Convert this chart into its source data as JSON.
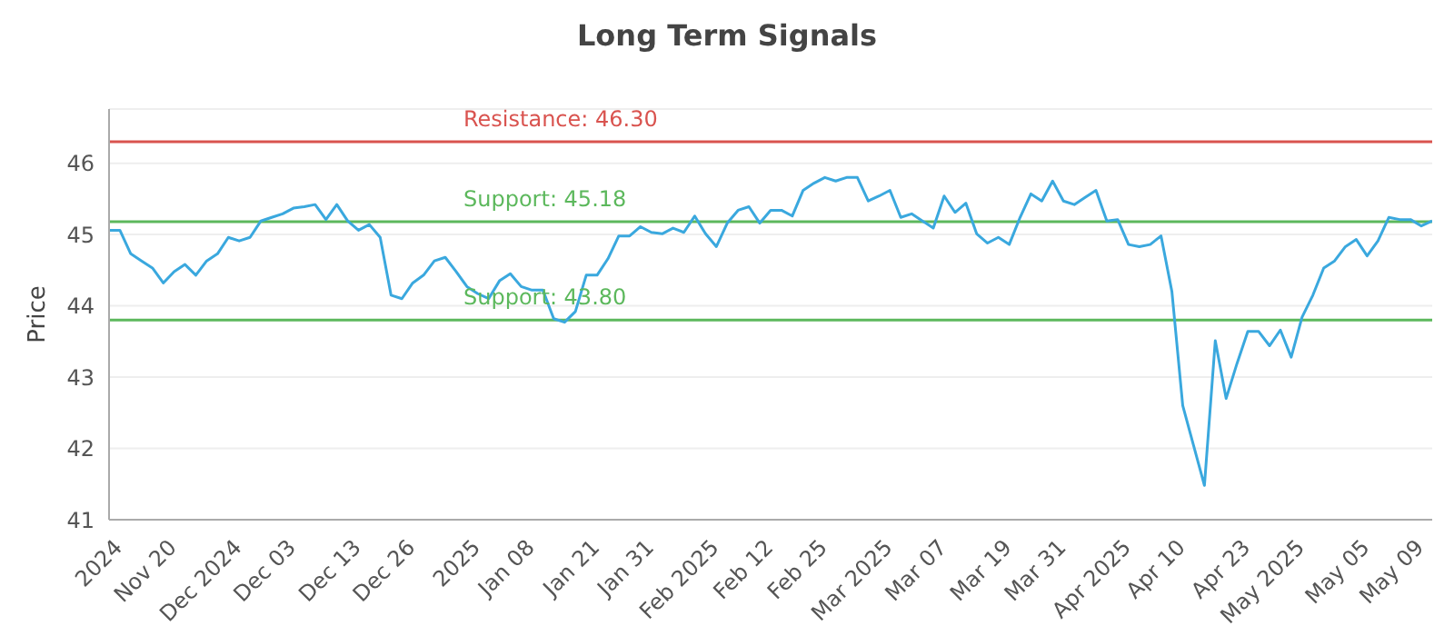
{
  "chart_data": {
    "type": "line",
    "title": "Long Term Signals",
    "ylabel": "Price",
    "categories": [
      null,
      "2024",
      null,
      null,
      null,
      null,
      "Nov 20",
      null,
      null,
      null,
      null,
      null,
      "Dec 2024",
      null,
      null,
      null,
      null,
      "Dec 03",
      null,
      null,
      null,
      null,
      null,
      "Dec 13",
      null,
      null,
      null,
      null,
      "Dec 26",
      null,
      null,
      null,
      null,
      null,
      "2025",
      null,
      null,
      null,
      null,
      "Jan 08",
      null,
      null,
      null,
      null,
      null,
      "Jan 21",
      null,
      null,
      null,
      null,
      "Jan 31",
      null,
      null,
      null,
      null,
      null,
      "Feb 2025",
      null,
      null,
      null,
      null,
      "Feb 12",
      null,
      null,
      null,
      null,
      "Feb 25",
      null,
      null,
      null,
      null,
      null,
      "Mar 2025",
      null,
      null,
      null,
      null,
      "Mar 07",
      null,
      null,
      null,
      null,
      null,
      "Mar 19",
      null,
      null,
      null,
      null,
      "Mar 31",
      null,
      null,
      null,
      null,
      null,
      "Apr 2025",
      null,
      null,
      null,
      null,
      "Apr 10",
      null,
      null,
      null,
      null,
      null,
      "Apr 23",
      null,
      null,
      null,
      null,
      "May 2025",
      null,
      null,
      null,
      null,
      null,
      "May 05",
      null,
      null,
      null,
      null,
      "May 09",
      null
    ],
    "series": [
      {
        "color": "#3aa8de",
        "values": [
          45.06,
          45.06,
          44.73,
          44.63,
          44.53,
          44.32,
          44.48,
          44.58,
          44.43,
          44.63,
          44.73,
          44.96,
          44.91,
          44.96,
          45.19,
          45.24,
          45.29,
          45.37,
          45.39,
          45.42,
          45.21,
          45.42,
          45.19,
          45.06,
          45.14,
          44.96,
          44.15,
          44.1,
          44.32,
          44.43,
          44.63,
          44.68,
          44.48,
          44.27,
          44.17,
          44.1,
          44.35,
          44.45,
          44.27,
          44.22,
          44.22,
          43.82,
          43.77,
          43.92,
          44.43,
          44.43,
          44.66,
          44.98,
          44.98,
          45.11,
          45.03,
          45.01,
          45.09,
          45.03,
          45.26,
          45.01,
          44.83,
          45.16,
          45.34,
          45.39,
          45.16,
          45.34,
          45.34,
          45.26,
          45.62,
          45.72,
          45.8,
          45.75,
          45.8,
          45.8,
          45.47,
          45.54,
          45.62,
          45.24,
          45.29,
          45.19,
          45.09,
          45.54,
          45.31,
          45.44,
          45.01,
          44.88,
          44.96,
          44.86,
          45.24,
          45.57,
          45.47,
          45.75,
          45.47,
          45.42,
          45.52,
          45.62,
          45.19,
          45.21,
          44.86,
          44.83,
          44.86,
          44.98,
          44.2,
          42.6,
          42.04,
          41.48,
          43.51,
          42.7,
          43.19,
          43.64,
          43.64,
          43.44,
          43.66,
          43.28,
          43.84,
          44.15,
          44.53,
          44.63,
          44.83,
          44.93,
          44.7,
          44.91,
          45.24,
          45.21,
          45.21,
          45.12,
          45.19
        ]
      }
    ],
    "ylim": [
      41,
      46.76
    ],
    "yticks": [
      41,
      42,
      43,
      44,
      45,
      46
    ],
    "grid": "y",
    "marker": "none",
    "line_style": "solid",
    "ref_lines": [
      {
        "axis": "y",
        "value": 46.3,
        "label": "Resistance: 46.30",
        "color": "#d9534f"
      },
      {
        "axis": "y",
        "value": 45.18,
        "label": "Support: 45.18",
        "color": "#5cb85c"
      },
      {
        "axis": "y",
        "value": 43.8,
        "label": "Support: 43.80",
        "color": "#5cb85c"
      }
    ]
  }
}
